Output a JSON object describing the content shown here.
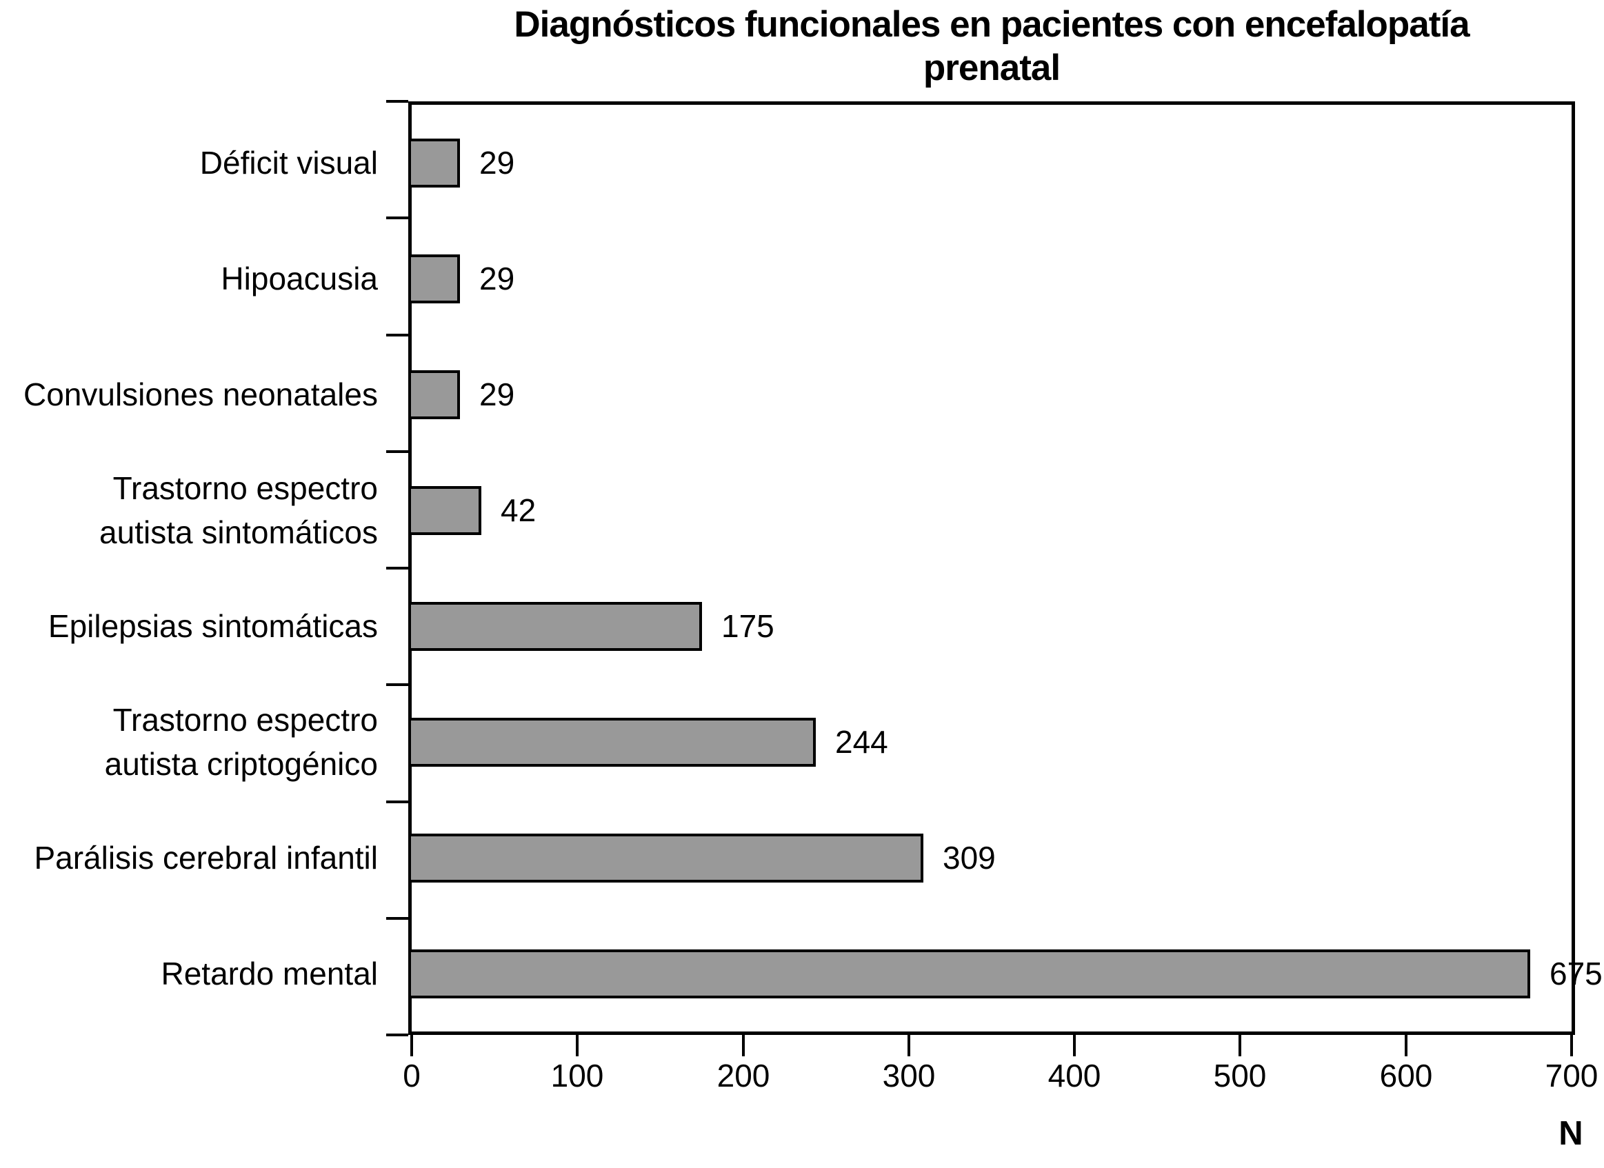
{
  "title_lines": [
    "Diagnósticos funcionales en pacientes con encefalopatía",
    "prenatal"
  ],
  "colors": {
    "bar_fill": "#999999",
    "bar_border": "#000000",
    "axis": "#000000",
    "text": "#000000",
    "background": "#ffffff"
  },
  "chart_data": {
    "type": "bar",
    "orientation": "horizontal",
    "title": "Diagnósticos funcionales en pacientes con encefalopatía prenatal",
    "categories": [
      "Déficit visual",
      "Hipoacusia",
      "Convulsiones neonatales",
      "Trastorno espectro\nautista sintomáticos",
      "Epilepsias sintomáticas",
      "Trastorno espectro\nautista criptogénico",
      "Parálisis cerebral infantil",
      "Retardo mental"
    ],
    "values": [
      29,
      29,
      29,
      42,
      175,
      244,
      309,
      675
    ],
    "value_labels": [
      "29",
      "29",
      "29",
      "42",
      "175",
      "244",
      "309",
      "675"
    ],
    "xlabel": "N",
    "ylabel": "",
    "xlim": [
      0,
      700
    ],
    "xticks": [
      0,
      100,
      200,
      300,
      400,
      500,
      600,
      700
    ],
    "grid": false,
    "legend": null,
    "value_labels_shown": true
  }
}
